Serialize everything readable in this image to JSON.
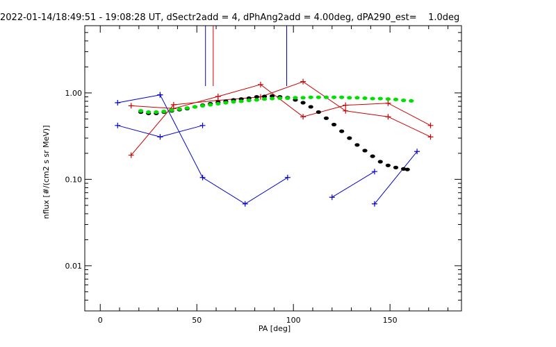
{
  "chart_data": {
    "type": "line",
    "title": "2022-01-14/18:49:51 - 19:08:28 UT, dSectr2add = 4, dPhAng2add = 4.00deg, dPA290_est=    1.0deg",
    "xlabel": "PA [deg]",
    "ylabel": "nflux [#/(cm2 s sr MeV)]",
    "xlim": [
      -8,
      187
    ],
    "ylim": [
      0.003,
      6
    ],
    "yscale": "log",
    "x_ticks": [
      0,
      50,
      100,
      150
    ],
    "x_tick_labels": [
      "0",
      "50",
      "100",
      "150"
    ],
    "y_ticks": [
      0.01,
      0.1,
      1.0
    ],
    "y_tick_labels": [
      "0.01",
      "0.10",
      "1.00"
    ],
    "grid": false,
    "colors": {
      "blue": "#0000cc",
      "red": "#cc0000",
      "black": "#000000",
      "green": "#00e000"
    },
    "series": [
      {
        "color": "blue",
        "marker": "plus",
        "x": [
          9,
          31
        ],
        "y": [
          0.77,
          0.95
        ]
      },
      {
        "color": "blue",
        "marker": "plus",
        "x": [
          9,
          31,
          53
        ],
        "y": [
          0.42,
          0.31,
          0.42
        ]
      },
      {
        "color": "blue",
        "marker": "plus",
        "x": [
          31,
          53,
          75,
          97
        ],
        "y": [
          0.95,
          0.105,
          0.052,
          0.105
        ]
      },
      {
        "color": "blue",
        "marker": "plus",
        "x": [
          120,
          142
        ],
        "y": [
          0.062,
          0.123
        ]
      },
      {
        "color": "blue",
        "marker": "plus",
        "x": [
          142,
          164
        ],
        "y": [
          0.052,
          0.21
        ]
      },
      {
        "color": "red",
        "marker": "plus",
        "x": [
          16,
          38,
          61,
          83,
          105,
          127,
          149,
          171
        ],
        "y": [
          0.71,
          0.66,
          0.91,
          1.25,
          0.53,
          0.72,
          0.76,
          0.42
        ]
      },
      {
        "color": "red",
        "marker": "plus",
        "x": [
          16,
          38,
          61,
          83,
          105,
          127,
          149,
          171
        ],
        "y": [
          0.19,
          0.73,
          0.82,
          0.9,
          1.35,
          0.62,
          0.53,
          0.31
        ]
      },
      {
        "color": "red",
        "marker": "none",
        "x": [
          58.5,
          58.5
        ],
        "y": [
          1.2,
          6
        ]
      },
      {
        "color": "blue",
        "marker": "none",
        "x": [
          54.5,
          54.5
        ],
        "y": [
          1.2,
          6
        ]
      },
      {
        "color": "blue",
        "marker": "none",
        "x": [
          96.5,
          96.5
        ],
        "y": [
          1.2,
          6
        ]
      },
      {
        "color": "black",
        "marker": "dots",
        "x": [
          21,
          25,
          29,
          33,
          37,
          41,
          45,
          49,
          53,
          57,
          61,
          65,
          69,
          73,
          77,
          81,
          85,
          89,
          93,
          97,
          101,
          105,
          109,
          113,
          117,
          121,
          125,
          129,
          133,
          137,
          141,
          145,
          149,
          153,
          157,
          159
        ],
        "y": [
          0.6,
          0.58,
          0.58,
          0.6,
          0.62,
          0.64,
          0.66,
          0.69,
          0.72,
          0.75,
          0.78,
          0.8,
          0.83,
          0.85,
          0.87,
          0.9,
          0.91,
          0.92,
          0.9,
          0.88,
          0.83,
          0.77,
          0.69,
          0.6,
          0.51,
          0.43,
          0.36,
          0.3,
          0.25,
          0.215,
          0.185,
          0.16,
          0.145,
          0.137,
          0.132,
          0.13
        ]
      },
      {
        "color": "green",
        "marker": "dots",
        "x": [
          21,
          25,
          29,
          33,
          37,
          41,
          45,
          49,
          53,
          57,
          61,
          65,
          69,
          73,
          77,
          81,
          85,
          89,
          93,
          97,
          101,
          105,
          109,
          113,
          117,
          121,
          125,
          129,
          133,
          137,
          141,
          145,
          149,
          153,
          157,
          161
        ],
        "y": [
          0.62,
          0.6,
          0.6,
          0.61,
          0.63,
          0.65,
          0.67,
          0.69,
          0.71,
          0.73,
          0.75,
          0.77,
          0.79,
          0.8,
          0.82,
          0.83,
          0.85,
          0.86,
          0.87,
          0.87,
          0.88,
          0.88,
          0.89,
          0.89,
          0.89,
          0.89,
          0.89,
          0.88,
          0.88,
          0.87,
          0.86,
          0.86,
          0.85,
          0.84,
          0.82,
          0.81
        ]
      }
    ]
  }
}
